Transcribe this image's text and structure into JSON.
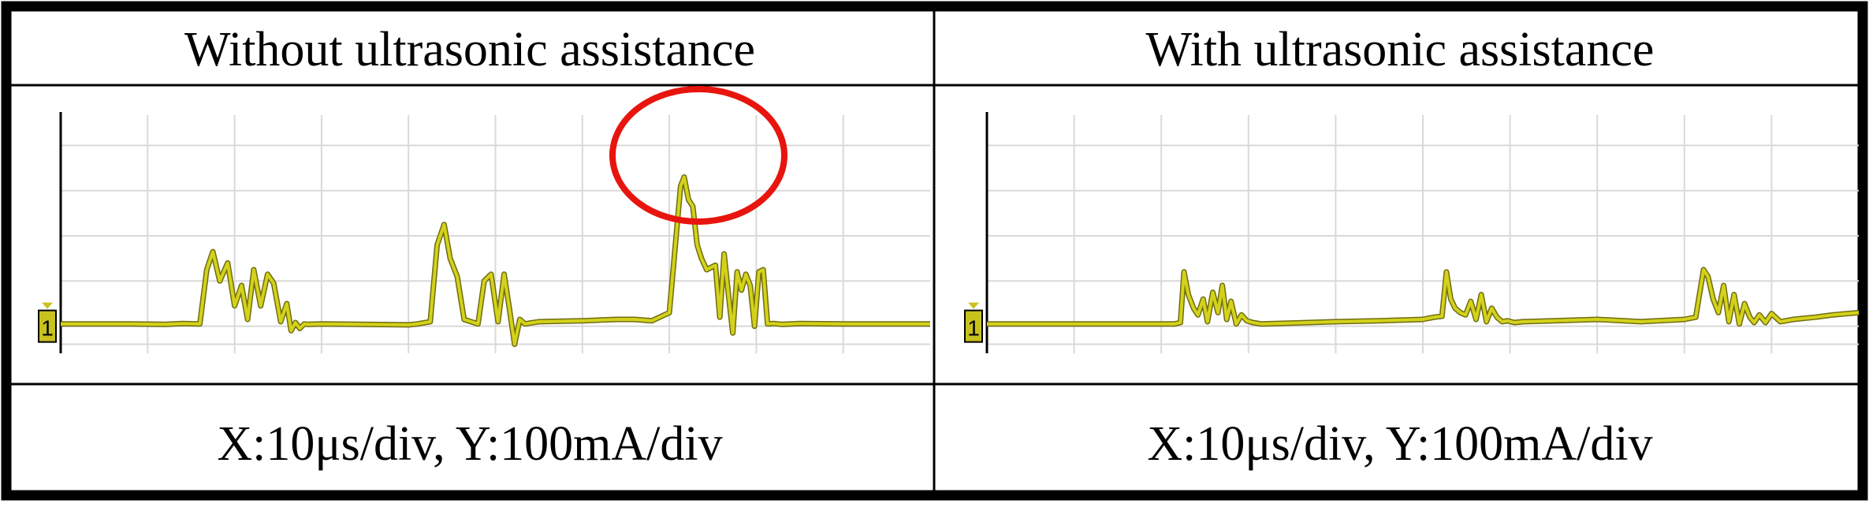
{
  "colors": {
    "trace": "#d4d21a",
    "trace_dark": "#6f6d12",
    "grid": "#d9d9d9",
    "marker_box": "#c8c21e",
    "highlight": "#e8150f",
    "border": "#000000"
  },
  "marker_label": "1",
  "chart_data": [
    {
      "type": "line",
      "title": "Without ultrasonic assistance",
      "scale": "X:10μs/div, Y:100mA/div",
      "grid": true,
      "xlim": [
        0,
        100
      ],
      "ylim": [
        -60,
        460
      ],
      "x": [
        0,
        8,
        12,
        14,
        16,
        16.8,
        17.5,
        18.3,
        19.2,
        20,
        20.8,
        21.5,
        22.2,
        23,
        23.8,
        24.5,
        25.3,
        26,
        26.5,
        27,
        27.5,
        28,
        28.5,
        30,
        40,
        41,
        42.5,
        43.3,
        44.1,
        44.8,
        45.6,
        46.4,
        47.2,
        48,
        48.7,
        49.5,
        50.3,
        51,
        51.6,
        52.2,
        52.8,
        53.4,
        54,
        55,
        60,
        64,
        66,
        68,
        70,
        71.3,
        71.7,
        72.2,
        72.7,
        73.2,
        73.7,
        74.3,
        74.8,
        75.3,
        75.8,
        76.3,
        76.8,
        77.3,
        77.8,
        78.3,
        78.8,
        79.3,
        79.8,
        80.3,
        80.8,
        81.3,
        82,
        83,
        85,
        90,
        100
      ],
      "series": [
        {
          "values": [
            5,
            5,
            4,
            6,
            5,
            125,
            165,
            100,
            140,
            45,
            90,
            15,
            125,
            45,
            115,
            95,
            10,
            50,
            -10,
            8,
            -5,
            5,
            4,
            5,
            3,
            5,
            10,
            180,
            225,
            150,
            110,
            15,
            10,
            5,
            100,
            115,
            10,
            115,
            40,
            -40,
            15,
            5,
            7,
            10,
            12,
            15,
            15,
            12,
            30,
            310,
            330,
            280,
            265,
            180,
            150,
            125,
            130,
            135,
            20,
            160,
            70,
            -15,
            120,
            80,
            115,
            90,
            0,
            120,
            125,
            5,
            6,
            4,
            6,
            5,
            5
          ]
        }
      ],
      "annotation": "red circle around main peak"
    },
    {
      "type": "line",
      "title": "With ultrasonic assistance",
      "scale": "X:10μs/div, Y:100mA/div",
      "grid": true,
      "xlim": [
        0,
        100
      ],
      "ylim": [
        -60,
        460
      ],
      "x": [
        0,
        10,
        20,
        21.5,
        22.2,
        22.6,
        23.1,
        23.7,
        24.2,
        24.8,
        25.3,
        25.9,
        26.5,
        27,
        27.5,
        28,
        28.6,
        29.2,
        29.8,
        30.5,
        31.5,
        35,
        40,
        45,
        50,
        51.3,
        52.2,
        52.7,
        53.2,
        53.7,
        54.3,
        54.9,
        55.5,
        56.1,
        56.7,
        57.3,
        57.9,
        58.5,
        59.1,
        59.7,
        60.5,
        61.5,
        65,
        70,
        75,
        80,
        81.3,
        82.2,
        82.7,
        83.3,
        83.9,
        84.5,
        85.1,
        85.7,
        86.3,
        86.9,
        87.5,
        88,
        88.6,
        89.3,
        90,
        91,
        92.5,
        95,
        97,
        100
      ],
      "series": [
        {
          "values": [
            5,
            5,
            5,
            5,
            8,
            120,
            70,
            40,
            25,
            60,
            10,
            75,
            30,
            90,
            15,
            55,
            5,
            25,
            12,
            8,
            5,
            7,
            10,
            12,
            15,
            20,
            22,
            120,
            60,
            40,
            30,
            25,
            55,
            15,
            70,
            10,
            40,
            20,
            10,
            12,
            8,
            10,
            12,
            15,
            10,
            15,
            20,
            125,
            110,
            60,
            30,
            90,
            10,
            70,
            5,
            50,
            20,
            8,
            25,
            8,
            28,
            10,
            15,
            20,
            25,
            30
          ]
        }
      ]
    }
  ]
}
